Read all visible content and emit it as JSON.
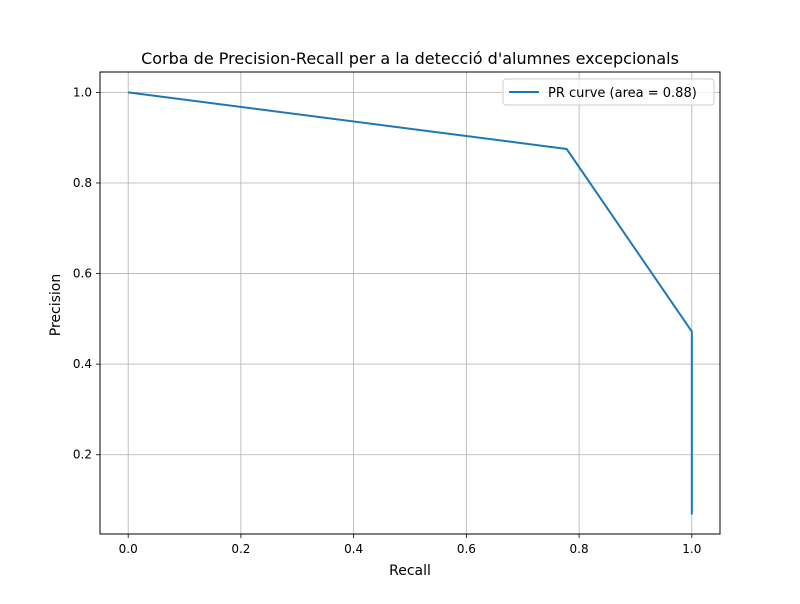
{
  "chart_data": {
    "type": "line",
    "title": "Corba de Precision-Recall per a la detecció d'alumnes excepcionals",
    "xlabel": "Recall",
    "ylabel": "Precision",
    "xlim": [
      -0.05,
      1.05
    ],
    "ylim": [
      0.025,
      1.045
    ],
    "x_ticks": [
      0.0,
      0.2,
      0.4,
      0.6,
      0.8,
      1.0
    ],
    "x_tick_labels": [
      "0.0",
      "0.2",
      "0.4",
      "0.6",
      "0.8",
      "1.0"
    ],
    "y_ticks": [
      0.2,
      0.4,
      0.6,
      0.8,
      1.0
    ],
    "y_tick_labels": [
      "0.2",
      "0.4",
      "0.6",
      "0.8",
      "1.0"
    ],
    "grid": true,
    "legend_position": "upper-right",
    "series": [
      {
        "name": "PR curve (area = 0.88)",
        "color": "#1f77b4",
        "x": [
          0.0,
          0.778,
          1.0,
          1.0
        ],
        "y": [
          1.0,
          0.875,
          0.472,
          0.068
        ]
      }
    ]
  }
}
